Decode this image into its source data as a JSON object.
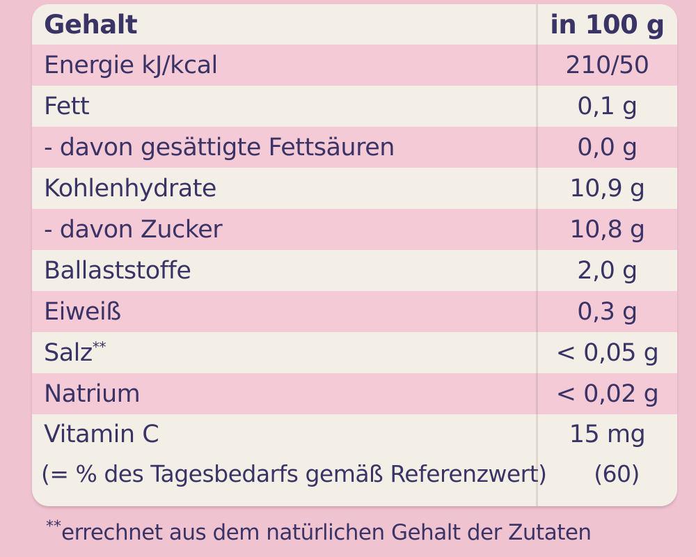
{
  "colors": {
    "background_pink": "#efc3d0",
    "stripe_pink": "#f5cad7",
    "panel_cream": "#f4efe6",
    "text_navy": "#3a3466"
  },
  "table": {
    "header": {
      "label": "Gehalt",
      "value": "in 100 g"
    },
    "rows": [
      {
        "label": "Energie kJ/kcal",
        "sup": "",
        "value": "210/50"
      },
      {
        "label": "Fett",
        "sup": "",
        "value": "0,1 g"
      },
      {
        "label": "- davon gesättigte Fettsäuren",
        "sup": "",
        "value": "0,0 g"
      },
      {
        "label": "Kohlenhydrate",
        "sup": "",
        "value": "10,9 g"
      },
      {
        "label": "- davon Zucker",
        "sup": "",
        "value": "10,8 g"
      },
      {
        "label": "Ballaststoffe",
        "sup": "",
        "value": "2,0 g"
      },
      {
        "label": "Eiweiß",
        "sup": "",
        "value": "0,3 g"
      },
      {
        "label": "Salz",
        "sup": "**",
        "value": "< 0,05 g"
      },
      {
        "label": "Natrium",
        "sup": "",
        "value": "< 0,02 g"
      }
    ],
    "vitamin_row": {
      "label": "Vitamin C",
      "value": "15 mg",
      "sub_label": "(= % des Tagesbedarfs gemäß Referenzwert)",
      "sub_value": "(60)"
    }
  },
  "footnote": {
    "marker": "**",
    "text": "errechnet aus dem natürlichen Gehalt der Zutaten"
  }
}
